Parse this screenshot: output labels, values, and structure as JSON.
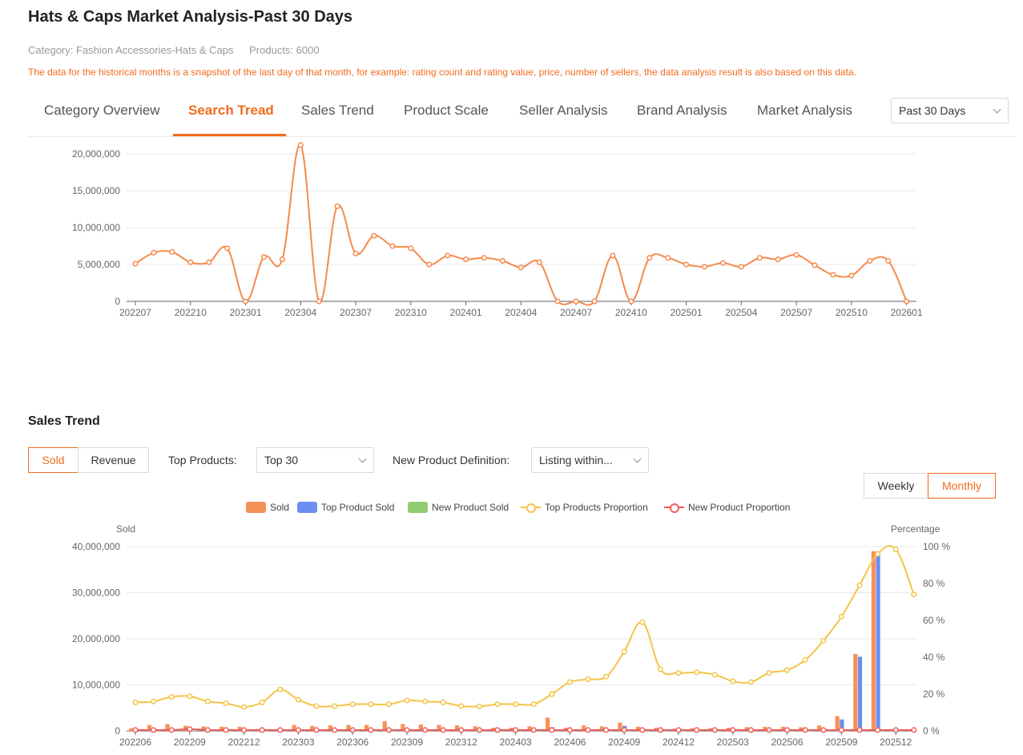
{
  "header": {
    "title": "Hats & Caps Market Analysis-Past 30 Days",
    "category_label": "Category: Fashion Accessories-Hats & Caps",
    "products_label": "Products: 6000",
    "notice": "The data for the historical months is a snapshot of the last day of that month, for example: rating count and rating value, price, number of sellers, the data analysis result is also based on this data."
  },
  "tabs": [
    {
      "label": "Category Overview"
    },
    {
      "label": "Search Tread"
    },
    {
      "label": "Sales Trend"
    },
    {
      "label": "Product Scale"
    },
    {
      "label": "Seller Analysis"
    },
    {
      "label": "Brand Analysis"
    },
    {
      "label": "Market Analysis"
    }
  ],
  "active_tab": "Search Tread",
  "period_select": {
    "value": "Past 30 Days"
  },
  "sales_section": {
    "title": "Sales Trend",
    "metric_toggle": [
      "Sold",
      "Revenue"
    ],
    "metric_active": "Sold",
    "top_products_label": "Top Products:",
    "top_products_value": "Top 30",
    "new_def_label": "New Product Definition:",
    "new_def_value": "Listing within...",
    "granularity": [
      "Weekly",
      "Monthly"
    ],
    "granularity_active": "Monthly"
  },
  "colors": {
    "accent": "#f26b1d",
    "search_line": "#f58a4b",
    "sold": "#f7915a",
    "top_sold": "#6b8ff0",
    "new_sold": "#91cc75",
    "top_prop": "#f5c445",
    "new_prop": "#ef5b5b"
  },
  "chart_data": [
    {
      "type": "line",
      "title": "",
      "x_tick_labels": [
        "202207",
        "202210",
        "202301",
        "202304",
        "202307",
        "202310",
        "202401",
        "202404",
        "202407",
        "202410",
        "202501",
        "202504",
        "202507",
        "202510",
        "202601"
      ],
      "y_tick_labels": [
        "0",
        "5,000,000",
        "10,000,000",
        "15,000,000",
        "20,000,000"
      ],
      "ylim": [
        0,
        20000000
      ],
      "x": [
        "202207",
        "202208",
        "202209",
        "202210",
        "202211",
        "202212",
        "202301",
        "202302",
        "202303",
        "202304",
        "202305",
        "202306",
        "202307",
        "202308",
        "202309",
        "202310",
        "202311",
        "202312",
        "202401",
        "202402",
        "202403",
        "202404",
        "202405",
        "202406",
        "202407",
        "202408",
        "202409",
        "202410",
        "202411",
        "202412",
        "202501",
        "202502",
        "202503",
        "202504",
        "202505",
        "202506",
        "202507",
        "202508",
        "202509",
        "202510",
        "202511",
        "202512",
        "202601"
      ],
      "series": [
        {
          "values": [
            5100000,
            6600000,
            6700000,
            5300000,
            5300000,
            7200000,
            0,
            6000000,
            5700000,
            21200000,
            0,
            12900000,
            6500000,
            8900000,
            7500000,
            7200000,
            5000000,
            6200000,
            5700000,
            5900000,
            5500000,
            4600000,
            5300000,
            0,
            0,
            0,
            6200000,
            0,
            5900000,
            5900000,
            5000000,
            4700000,
            5200000,
            4700000,
            5900000,
            5700000,
            6300000,
            4900000,
            3600000,
            3500000,
            5500000,
            5500000,
            0
          ]
        }
      ]
    },
    {
      "type": "bar",
      "title": "",
      "ylabel": "Sold",
      "y2label": "Percentage",
      "x_tick_labels": [
        "202206",
        "202209",
        "202212",
        "202303",
        "202306",
        "202309",
        "202312",
        "202403",
        "202406",
        "202409",
        "202412",
        "202503",
        "202506",
        "202509",
        "202512"
      ],
      "y_tick_labels": [
        "0",
        "10,000,000",
        "20,000,000",
        "30,000,000",
        "40,000,000"
      ],
      "y2_tick_labels": [
        "0 %",
        "20 %",
        "40 %",
        "60 %",
        "80 %",
        "100 %"
      ],
      "ylim": [
        0,
        40000000
      ],
      "y2lim": [
        0,
        100
      ],
      "legend": [
        "Sold",
        "Top Product Sold",
        "New Product Sold",
        "Top Products Proportion",
        "New Product Proportion"
      ],
      "legend_position": "top",
      "x": [
        "202206",
        "202207",
        "202208",
        "202209",
        "202210",
        "202211",
        "202212",
        "202301",
        "202302",
        "202303",
        "202304",
        "202305",
        "202306",
        "202307",
        "202308",
        "202309",
        "202310",
        "202311",
        "202312",
        "202401",
        "202402",
        "202403",
        "202404",
        "202405",
        "202406",
        "202407",
        "202408",
        "202409",
        "202410",
        "202411",
        "202412",
        "202501",
        "202502",
        "202503",
        "202504",
        "202505",
        "202506",
        "202507",
        "202508",
        "202509",
        "202510",
        "202511",
        "202512",
        "202601"
      ],
      "series": [
        {
          "name": "Sold",
          "kind": "bar",
          "values": [
            600000,
            1300000,
            1500000,
            1100000,
            1000000,
            900000,
            900000,
            400000,
            300000,
            1300000,
            1100000,
            1200000,
            1300000,
            1300000,
            2100000,
            1500000,
            1400000,
            1300000,
            1200000,
            1000000,
            700000,
            700000,
            1000000,
            2900000,
            700000,
            1200000,
            1000000,
            1800000,
            900000,
            700000,
            500000,
            600000,
            600000,
            700000,
            800000,
            900000,
            900000,
            800000,
            1200000,
            3200000,
            16700000,
            39000000,
            400000,
            0
          ]
        },
        {
          "name": "Top Product Sold",
          "kind": "bar",
          "values": [
            100000,
            200000,
            200000,
            200000,
            100000,
            100000,
            100000,
            100000,
            100000,
            200000,
            100000,
            200000,
            200000,
            200000,
            300000,
            200000,
            200000,
            200000,
            200000,
            200000,
            150000,
            150000,
            300000,
            800000,
            300000,
            400000,
            400000,
            1100000,
            300000,
            300000,
            150000,
            150000,
            150000,
            200000,
            250000,
            250000,
            300000,
            300000,
            500000,
            2500000,
            16100000,
            38500000,
            300000,
            0
          ]
        },
        {
          "name": "New Product Sold",
          "kind": "bar",
          "values": [
            50000,
            50000,
            50000,
            50000,
            50000,
            50000,
            50000,
            50000,
            50000,
            50000,
            50000,
            50000,
            50000,
            50000,
            50000,
            50000,
            50000,
            50000,
            50000,
            50000,
            50000,
            50000,
            50000,
            50000,
            50000,
            50000,
            50000,
            50000,
            50000,
            50000,
            50000,
            50000,
            50000,
            50000,
            50000,
            50000,
            50000,
            50000,
            50000,
            50000,
            50000,
            50000,
            50000,
            0
          ]
        },
        {
          "name": "Top Products Proportion",
          "kind": "line",
          "axis": "right",
          "values": [
            15.5,
            16,
            18.5,
            18.8,
            16,
            15,
            13,
            15.5,
            22.5,
            17,
            13.5,
            13.5,
            14.5,
            14.5,
            14.5,
            16.5,
            16,
            15.5,
            13.5,
            13.3,
            14.5,
            14.5,
            14.5,
            20,
            26.5,
            28,
            29.5,
            43,
            59,
            33.5,
            31.5,
            31.8,
            30.5,
            27,
            26.5,
            31.5,
            33,
            38.5,
            49,
            62,
            79,
            96,
            98.5,
            74
          ]
        },
        {
          "name": "New Product Proportion",
          "kind": "line",
          "axis": "right",
          "values": [
            0.5,
            0.5,
            0.5,
            1,
            0.5,
            0.5,
            0.5,
            0.5,
            0.5,
            0.5,
            0.5,
            0.5,
            0.5,
            0.5,
            0.5,
            0.5,
            0.5,
            0.5,
            0.5,
            0.5,
            0.5,
            0.5,
            0.5,
            0.5,
            0.5,
            0.5,
            0.5,
            0.5,
            0.5,
            0.5,
            0.5,
            0.5,
            0.5,
            0.5,
            0.5,
            0.5,
            0.5,
            0.5,
            0.5,
            0.5,
            0.5,
            0.5,
            0.5,
            0.5
          ]
        }
      ]
    }
  ]
}
